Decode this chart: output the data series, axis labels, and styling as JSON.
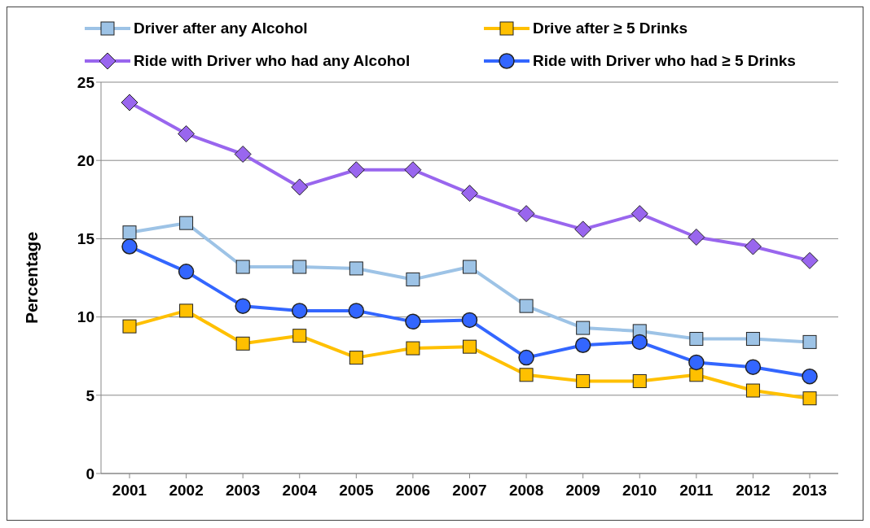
{
  "chart_data": {
    "type": "line",
    "ylabel": "Percentage",
    "categories": [
      "2001",
      "2002",
      "2003",
      "2004",
      "2005",
      "2006",
      "2007",
      "2008",
      "2009",
      "2010",
      "2011",
      "2012",
      "2013"
    ],
    "series": [
      {
        "name": "Driver after any Alcohol",
        "color": "#9dc3e6",
        "marker": "square",
        "values": [
          15.4,
          16.0,
          13.2,
          13.2,
          13.1,
          12.4,
          13.2,
          10.7,
          9.3,
          9.1,
          8.6,
          8.6,
          8.4
        ]
      },
      {
        "name": "Drive after ≥ 5 Drinks",
        "color": "#ffc000",
        "marker": "square",
        "values": [
          9.4,
          10.4,
          8.3,
          8.8,
          7.4,
          8.0,
          8.1,
          6.3,
          5.9,
          5.9,
          6.3,
          5.3,
          4.8
        ]
      },
      {
        "name": "Ride with Driver who had any Alcohol",
        "color": "#9966ee",
        "marker": "diamond",
        "values": [
          23.7,
          21.7,
          20.4,
          18.3,
          19.4,
          19.4,
          17.9,
          16.6,
          15.6,
          16.6,
          15.1,
          14.5,
          13.6
        ]
      },
      {
        "name": "Ride with Driver who had ≥ 5 Drinks",
        "color": "#3366ff",
        "marker": "circle",
        "values": [
          14.5,
          12.9,
          10.7,
          10.4,
          10.4,
          9.7,
          9.8,
          7.4,
          8.2,
          8.4,
          7.1,
          6.8,
          6.2
        ]
      }
    ],
    "ylim": [
      0,
      25
    ],
    "yticks": [
      0,
      5,
      10,
      15,
      20,
      25
    ],
    "grid": "y",
    "legend": "top",
    "line_style": "solid"
  }
}
